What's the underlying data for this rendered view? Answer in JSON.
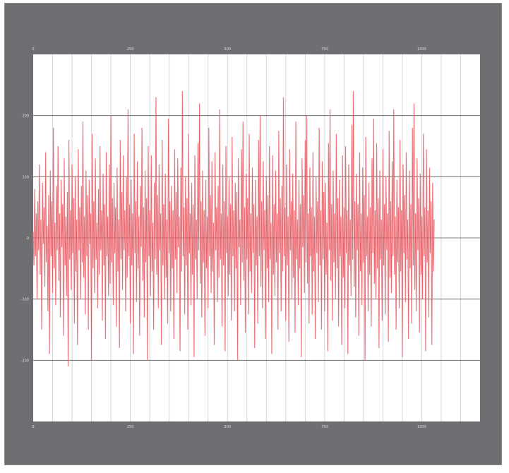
{
  "window": {
    "title": "",
    "colors": {
      "frame": "#6e6f72",
      "plot_background": "#ffffff",
      "series_line": "#f08a8f",
      "series_line_dark": "#e0464f",
      "grid_vertical": "#c9cdd6",
      "grid_horizontal": "#555555",
      "label_text": "#dcdcdc"
    }
  },
  "chart_data": {
    "type": "line",
    "title": "",
    "xlabel": "",
    "ylabel": "",
    "x2label": "",
    "xlim": [
      0,
      1150
    ],
    "ylim": [
      -300,
      300
    ],
    "x_ticks": [
      0,
      250,
      500,
      750,
      1000
    ],
    "x_tick_labels": [
      "0",
      "250",
      "500",
      "750",
      "1000"
    ],
    "x2_ticks": [
      0,
      250,
      500,
      750,
      1000
    ],
    "x2_tick_labels": [
      "0",
      "250",
      "500",
      "750",
      "1000"
    ],
    "y_ticks": [
      200,
      100,
      0,
      -100,
      -200
    ],
    "y_tick_labels": [
      "200",
      "100",
      "0",
      "-100",
      "-200"
    ],
    "x_gridline_count": 23,
    "grid": true,
    "legend": "none",
    "series": [
      {
        "sample_step": 2,
        "values": [
          10,
          -45,
          80,
          -30,
          40,
          -100,
          60,
          -20,
          120,
          -60,
          30,
          -150,
          90,
          -10,
          50,
          -80,
          140,
          -40,
          20,
          -120,
          70,
          -190,
          110,
          -30,
          60,
          -90,
          180,
          -50,
          25,
          -110,
          85,
          -20,
          150,
          -70,
          40,
          -130,
          95,
          -15,
          55,
          -160,
          130,
          -45,
          35,
          -95,
          75,
          -210,
          160,
          -35,
          45,
          -85,
          120,
          -25,
          65,
          -140,
          100,
          -55,
          30,
          -175,
          145,
          -20,
          50,
          -100,
          85,
          -40,
          190,
          -65,
          35,
          -125,
          110,
          -30,
          70,
          -150,
          95,
          -10,
          40,
          -200,
          170,
          -50,
          60,
          -90,
          130,
          -35,
          25,
          -115,
          80,
          -60,
          150,
          -20,
          45,
          -135,
          105,
          -45,
          55,
          -165,
          140,
          -30,
          35,
          -95,
          120,
          -75,
          200,
          -40,
          65,
          -110,
          90,
          -25,
          50,
          -145,
          115,
          -55,
          30,
          -180,
          160,
          -35,
          75,
          -85,
          135,
          -20,
          45,
          -120,
          100,
          -65,
          210,
          -30,
          55,
          -140,
          95,
          -45,
          40,
          -190,
          170,
          -25,
          60,
          -105,
          125,
          -50,
          35,
          -160,
          85,
          -15,
          180,
          -70,
          50,
          -130,
          110,
          -40,
          65,
          -200,
          150,
          -30,
          45,
          -95,
          135,
          -55,
          25,
          -150,
          90,
          -35,
          230,
          -60,
          70,
          -115,
          120,
          -20,
          40,
          -175,
          160,
          -45,
          55,
          -100,
          105,
          -65,
          30,
          -140,
          195,
          -25,
          60,
          -120,
          85,
          -50,
          45,
          -165,
          145,
          -35,
          75,
          -90,
          130,
          -15,
          35,
          -185,
          115,
          -55,
          240,
          -30,
          50,
          -125,
          100,
          -45,
          65,
          -150,
          170,
          -25,
          40,
          -110,
          90,
          -60,
          55,
          -195,
          135,
          -35,
          30,
          -100,
          155,
          -20,
          220,
          -75,
          60,
          -130,
          110,
          -40,
          45,
          -160,
          95,
          -50,
          35,
          -115,
          180,
          -30,
          70,
          -90,
          125,
          -55,
          25,
          -175,
          140,
          -20,
          50,
          -105,
          85,
          -65,
          210,
          -35,
          40,
          -145,
          120,
          -45,
          60,
          -185,
          150,
          -25,
          35,
          -95,
          100,
          -60,
          55,
          -135,
          165,
          -30,
          45,
          -120,
          90,
          -50,
          75,
          -200,
          130,
          -15,
          30,
          -110,
          145,
          -40,
          190,
          -70,
          50,
          -155,
          105,
          -35,
          65,
          -125,
          170,
          -55,
          40,
          -90,
          115,
          -25,
          55,
          -180,
          95,
          -45,
          35,
          -140,
          160,
          -30,
          200,
          -80,
          60,
          -115,
          125,
          -20,
          45,
          -165,
          100,
          -50,
          70,
          -105,
          150,
          -35,
          25,
          -190,
          135,
          -60,
          55,
          -95,
          110,
          -40,
          40,
          -150,
          175,
          -25,
          65,
          -120,
          85,
          -55,
          230,
          -30,
          50,
          -135,
          120,
          -45,
          35,
          -170,
          145,
          -20,
          60,
          -100,
          105,
          -65,
          45,
          -155,
          190,
          -35,
          30,
          -110,
          95,
          -50,
          55,
          -195,
          130,
          -15,
          70,
          -90,
          160,
          -40,
          200,
          -75,
          40,
          -140,
          115,
          -30,
          50,
          -125,
          140,
          -55,
          35,
          -165,
          100,
          -25,
          60,
          -105,
          180,
          -45,
          45,
          -150,
          125,
          -35,
          75,
          -120,
          90,
          -60,
          25,
          -185,
          155,
          -20,
          210,
          -70,
          55,
          -135,
          110,
          -40,
          40,
          -100,
          170,
          -50,
          65,
          -145,
          95,
          -30,
          35,
          -175,
          135,
          -65,
          50,
          -115,
          150,
          -25,
          45,
          -190,
          120,
          -45,
          30,
          -95,
          185,
          -35,
          240,
          -80,
          60,
          -130,
          105,
          -20,
          55,
          -160,
          140,
          -55,
          40,
          -110,
          115,
          -40,
          70,
          -200,
          165,
          -30,
          35,
          -120,
          90,
          -60,
          50,
          -145,
          130,
          -25,
          195,
          -75,
          45,
          -100,
          155,
          -50,
          65,
          -180,
          110,
          -35,
          30,
          -135,
          145,
          -45,
          55,
          -125,
          100,
          -20,
          40,
          -170,
          175,
          -65,
          60,
          -90,
          125,
          -30,
          210,
          -60,
          35,
          -150,
          95,
          -40,
          50,
          -115,
          160,
          -55,
          45,
          -195,
          120,
          -25,
          70,
          -105,
          140,
          -35,
          30,
          -165,
          110,
          -50,
          55,
          -140,
          180,
          -45,
          220,
          -85,
          40,
          -120,
          130,
          -20,
          65,
          -155,
          105,
          -60,
          35,
          -100,
          170,
          -30,
          50,
          -185,
          145,
          -40,
          45,
          -130,
          115,
          -25,
          60,
          -175,
          90,
          -55,
          30
        ]
      }
    ]
  }
}
